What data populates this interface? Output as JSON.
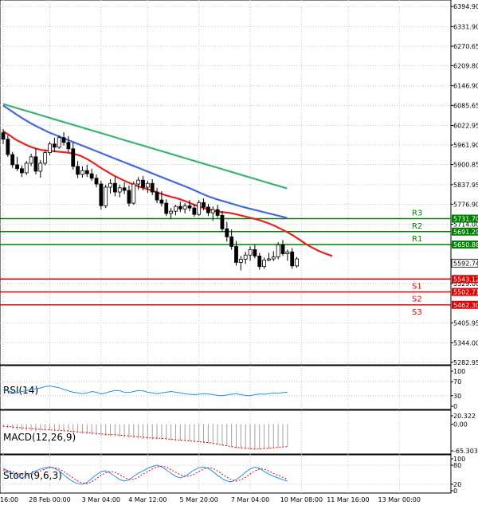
{
  "chart_data": {
    "type": "candlestick",
    "price_axis": {
      "ticks": [
        "6394.90",
        "6331.90",
        "6270.65",
        "6209.80",
        "6146.90",
        "6085.65",
        "6022.95",
        "5961.90",
        "5900.85",
        "5837.95",
        "5776.90",
        "5714.00",
        "5651.05",
        "5529.00",
        "5405.95",
        "5344.00",
        "5282.95"
      ],
      "ylim": [
        5275,
        6415
      ]
    },
    "time_axis": {
      "labels": [
        "16:00",
        "28 Feb 00:00",
        "3 Mar 04:00",
        "4 Mar 12:00",
        "5 Mar 20:00",
        "7 Mar 04:00",
        "10 Mar 08:00",
        "11 Mar 16:00",
        "13 Mar 00:00"
      ],
      "label_bar_index": [
        0,
        10,
        21,
        31,
        42,
        53,
        64,
        74,
        85
      ]
    },
    "ohlc": [
      [
        6000,
        6012,
        5965,
        5980
      ],
      [
        5980,
        5992,
        5925,
        5932
      ],
      [
        5932,
        5940,
        5890,
        5900
      ],
      [
        5900,
        5925,
        5880,
        5888
      ],
      [
        5888,
        5898,
        5862,
        5875
      ],
      [
        5875,
        5912,
        5868,
        5905
      ],
      [
        5905,
        5935,
        5896,
        5925
      ],
      [
        5925,
        5950,
        5870,
        5880
      ],
      [
        5880,
        5915,
        5860,
        5905
      ],
      [
        5905,
        5945,
        5898,
        5938
      ],
      [
        5938,
        5972,
        5930,
        5965
      ],
      [
        5965,
        5985,
        5940,
        5955
      ],
      [
        5955,
        5992,
        5950,
        5985
      ],
      [
        5985,
        6002,
        5960,
        5970
      ],
      [
        5970,
        5990,
        5940,
        5950
      ],
      [
        5950,
        5970,
        5885,
        5895
      ],
      [
        5895,
        5912,
        5858,
        5870
      ],
      [
        5870,
        5895,
        5860,
        5882
      ],
      [
        5882,
        5900,
        5862,
        5872
      ],
      [
        5872,
        5888,
        5850,
        5858
      ],
      [
        5858,
        5870,
        5830,
        5840
      ],
      [
        5840,
        5850,
        5760,
        5772
      ],
      [
        5772,
        5838,
        5765,
        5830
      ],
      [
        5830,
        5855,
        5810,
        5842
      ],
      [
        5842,
        5862,
        5802,
        5815
      ],
      [
        5815,
        5838,
        5798,
        5828
      ],
      [
        5828,
        5845,
        5808,
        5820
      ],
      [
        5820,
        5835,
        5770,
        5780
      ],
      [
        5780,
        5848,
        5775,
        5840
      ],
      [
        5840,
        5862,
        5822,
        5852
      ],
      [
        5852,
        5865,
        5820,
        5830
      ],
      [
        5830,
        5850,
        5812,
        5842
      ],
      [
        5842,
        5855,
        5805,
        5815
      ],
      [
        5815,
        5828,
        5780,
        5790
      ],
      [
        5790,
        5818,
        5770,
        5780
      ],
      [
        5780,
        5792,
        5740,
        5748
      ],
      [
        5748,
        5765,
        5730,
        5755
      ],
      [
        5755,
        5775,
        5742,
        5770
      ],
      [
        5770,
        5785,
        5752,
        5762
      ],
      [
        5762,
        5780,
        5748,
        5772
      ],
      [
        5772,
        5790,
        5755,
        5765
      ],
      [
        5765,
        5778,
        5738,
        5745
      ],
      [
        5745,
        5790,
        5740,
        5782
      ],
      [
        5782,
        5795,
        5758,
        5768
      ],
      [
        5768,
        5778,
        5740,
        5750
      ],
      [
        5750,
        5770,
        5725,
        5760
      ],
      [
        5760,
        5775,
        5735,
        5742
      ],
      [
        5742,
        5755,
        5690,
        5700
      ],
      [
        5700,
        5722,
        5660,
        5675
      ],
      [
        5675,
        5698,
        5635,
        5645
      ],
      [
        5645,
        5662,
        5585,
        5595
      ],
      [
        5595,
        5615,
        5570,
        5605
      ],
      [
        5605,
        5628,
        5590,
        5618
      ],
      [
        5618,
        5645,
        5600,
        5635
      ],
      [
        5635,
        5650,
        5608,
        5615
      ],
      [
        5615,
        5625,
        5572,
        5582
      ],
      [
        5582,
        5610,
        5575,
        5602
      ],
      [
        5602,
        5625,
        5598,
        5606
      ],
      [
        5606,
        5630,
        5599,
        5612
      ],
      [
        5612,
        5658,
        5605,
        5650
      ],
      [
        5650,
        5665,
        5615,
        5622
      ],
      [
        5622,
        5635,
        5600,
        5628
      ],
      [
        5628,
        5640,
        5575,
        5584
      ],
      [
        5584,
        5612,
        5578,
        5606
      ]
    ],
    "series": [
      {
        "name": "",
        "color": "#e8211d",
        "values": [
          6005,
          5992,
          5978,
          5968,
          5958,
          5951,
          5946,
          5944,
          5942,
          5940,
          5938,
          5934,
          5928,
          5918,
          5906,
          5892,
          5880,
          5868,
          5858,
          5848,
          5840,
          5832,
          5826,
          5820,
          5813,
          5806,
          5800,
          5795,
          5788,
          5780,
          5772,
          5765,
          5760,
          5755,
          5752,
          5750,
          5746,
          5741,
          5736,
          5731,
          5725,
          5718,
          5710,
          5700,
          5690,
          5678,
          5665,
          5651,
          5640,
          5630,
          5622,
          5615
        ]
      },
      {
        "name": "",
        "color": "#4169e1",
        "values": [
          6085,
          6072,
          6058,
          6045,
          6033,
          6022,
          6012,
          6002,
          5994,
          5986,
          5978,
          5970,
          5962,
          5954,
          5946,
          5938,
          5930,
          5922,
          5914,
          5906,
          5898,
          5890,
          5882,
          5874,
          5866,
          5858,
          5850,
          5842,
          5834,
          5826,
          5817,
          5808,
          5800,
          5793,
          5787,
          5781,
          5775,
          5769,
          5764,
          5759,
          5754,
          5749,
          5744,
          5739,
          5734
        ]
      },
      {
        "name": "",
        "color": "#3cb371",
        "values": [
          6090,
          6084,
          6078,
          6072,
          6066,
          6060,
          6054,
          6048,
          6042,
          6036,
          6030,
          6024,
          6018,
          6012,
          6006,
          6000,
          5994,
          5988,
          5982,
          5976,
          5970,
          5964,
          5958,
          5952,
          5946,
          5940,
          5934,
          5928,
          5922,
          5916,
          5910,
          5904,
          5898,
          5892,
          5886,
          5880,
          5874,
          5868,
          5862,
          5856,
          5850,
          5844,
          5838,
          5832,
          5826
        ]
      }
    ],
    "levels": [
      {
        "name": "R3",
        "value": 5731.7,
        "box": "5731.70",
        "kind": "resistance",
        "color": "#008000"
      },
      {
        "name": "R2",
        "value": 5691.29,
        "box": "5691.29",
        "kind": "resistance",
        "color": "#008000"
      },
      {
        "name": "R1",
        "value": 5650.88,
        "box": "5650.88",
        "kind": "resistance",
        "color": "#008000"
      },
      {
        "name": "S1",
        "value": 5543.12,
        "box": "5543.12",
        "kind": "support",
        "color": "#e00000"
      },
      {
        "name": "S2",
        "value": 5502.71,
        "box": "5502.71",
        "kind": "support",
        "color": "#e00000"
      },
      {
        "name": "S3",
        "value": 5462.3,
        "box": "5462.30",
        "kind": "support",
        "color": "#e00000"
      }
    ],
    "current_price": {
      "value": 5592.74,
      "box": "5592.74"
    },
    "rsi": {
      "label": "RSI(14)",
      "ticks": [
        "100",
        "70",
        "30",
        "0"
      ],
      "tick_values": [
        100,
        70,
        30,
        0
      ],
      "color": "#1e90ff",
      "values": [
        46,
        44,
        40,
        38,
        42,
        45,
        48,
        50,
        52,
        56,
        58,
        55,
        53,
        48,
        44,
        40,
        38,
        36,
        38,
        42,
        40,
        35,
        38,
        42,
        45,
        44,
        40,
        39,
        42,
        45,
        44,
        40,
        38,
        36,
        38,
        40,
        42,
        40,
        38,
        36,
        34,
        33,
        34,
        36,
        35,
        33,
        31,
        30,
        32,
        34,
        36,
        33,
        31,
        30,
        33,
        35,
        34,
        36,
        38,
        37,
        39,
        40
      ]
    },
    "macd": {
      "label": "MACD(12,26,9)",
      "ticks": [
        "20.322",
        "0.00",
        "-65.303"
      ],
      "tick_values": [
        20.322,
        0,
        -65.303
      ],
      "hist": [
        -8,
        -10,
        -12,
        -14,
        -15,
        -16,
        -17,
        -18,
        -17,
        -16,
        -15,
        -14,
        -15,
        -16,
        -18,
        -20,
        -22,
        -24,
        -25,
        -26,
        -27,
        -28,
        -29,
        -30,
        -30,
        -31,
        -32,
        -33,
        -34,
        -35,
        -36,
        -37,
        -38,
        -38,
        -38,
        -39,
        -40,
        -41,
        -42,
        -42,
        -43,
        -44,
        -45,
        -46,
        -47,
        -48,
        -50,
        -52,
        -54,
        -56,
        -58,
        -60,
        -62,
        -62,
        -63,
        -62,
        -61,
        -60,
        -58,
        -57,
        -56,
        -55
      ],
      "signal": [
        -5,
        -6,
        -7,
        -8,
        -9,
        -10,
        -11,
        -12,
        -13,
        -14,
        -14,
        -15,
        -15,
        -16,
        -17,
        -18,
        -19,
        -20,
        -21,
        -22,
        -23,
        -24,
        -25,
        -26,
        -26,
        -27,
        -28,
        -29,
        -30,
        -31,
        -32,
        -33,
        -34,
        -34,
        -35,
        -36,
        -37,
        -38,
        -39,
        -40,
        -41,
        -42,
        -43,
        -44,
        -45,
        -47,
        -49,
        -51,
        -53,
        -55,
        -57,
        -58,
        -59,
        -60,
        -61,
        -61,
        -60,
        -59,
        -58,
        -57,
        -56,
        -55
      ]
    },
    "stoch": {
      "label": "Stoch(9,6,3)",
      "ticks": [
        "100",
        "80",
        "20",
        "0"
      ],
      "tick_values": [
        100,
        80,
        20,
        0
      ],
      "k_color": "#1e90ff",
      "d_color": "#e00000",
      "k": [
        70,
        62,
        55,
        45,
        40,
        48,
        55,
        62,
        68,
        72,
        75,
        70,
        62,
        50,
        38,
        28,
        22,
        20,
        26,
        38,
        50,
        60,
        62,
        55,
        45,
        35,
        30,
        34,
        45,
        55,
        62,
        70,
        76,
        80,
        75,
        65,
        55,
        45,
        40,
        45,
        55,
        65,
        72,
        74,
        70,
        60,
        48,
        38,
        30,
        28,
        35,
        45,
        58,
        68,
        74,
        70,
        60,
        52,
        45,
        40,
        34,
        30
      ],
      "d": [
        65,
        63,
        60,
        55,
        50,
        47,
        50,
        55,
        62,
        68,
        72,
        72,
        68,
        60,
        50,
        40,
        30,
        24,
        22,
        28,
        38,
        48,
        56,
        60,
        58,
        50,
        42,
        35,
        35,
        42,
        52,
        60,
        68,
        74,
        77,
        74,
        66,
        58,
        50,
        45,
        46,
        52,
        60,
        68,
        72,
        70,
        62,
        52,
        42,
        34,
        30,
        34,
        42,
        52,
        62,
        68,
        68,
        62,
        54,
        48,
        42,
        36
      ]
    }
  }
}
